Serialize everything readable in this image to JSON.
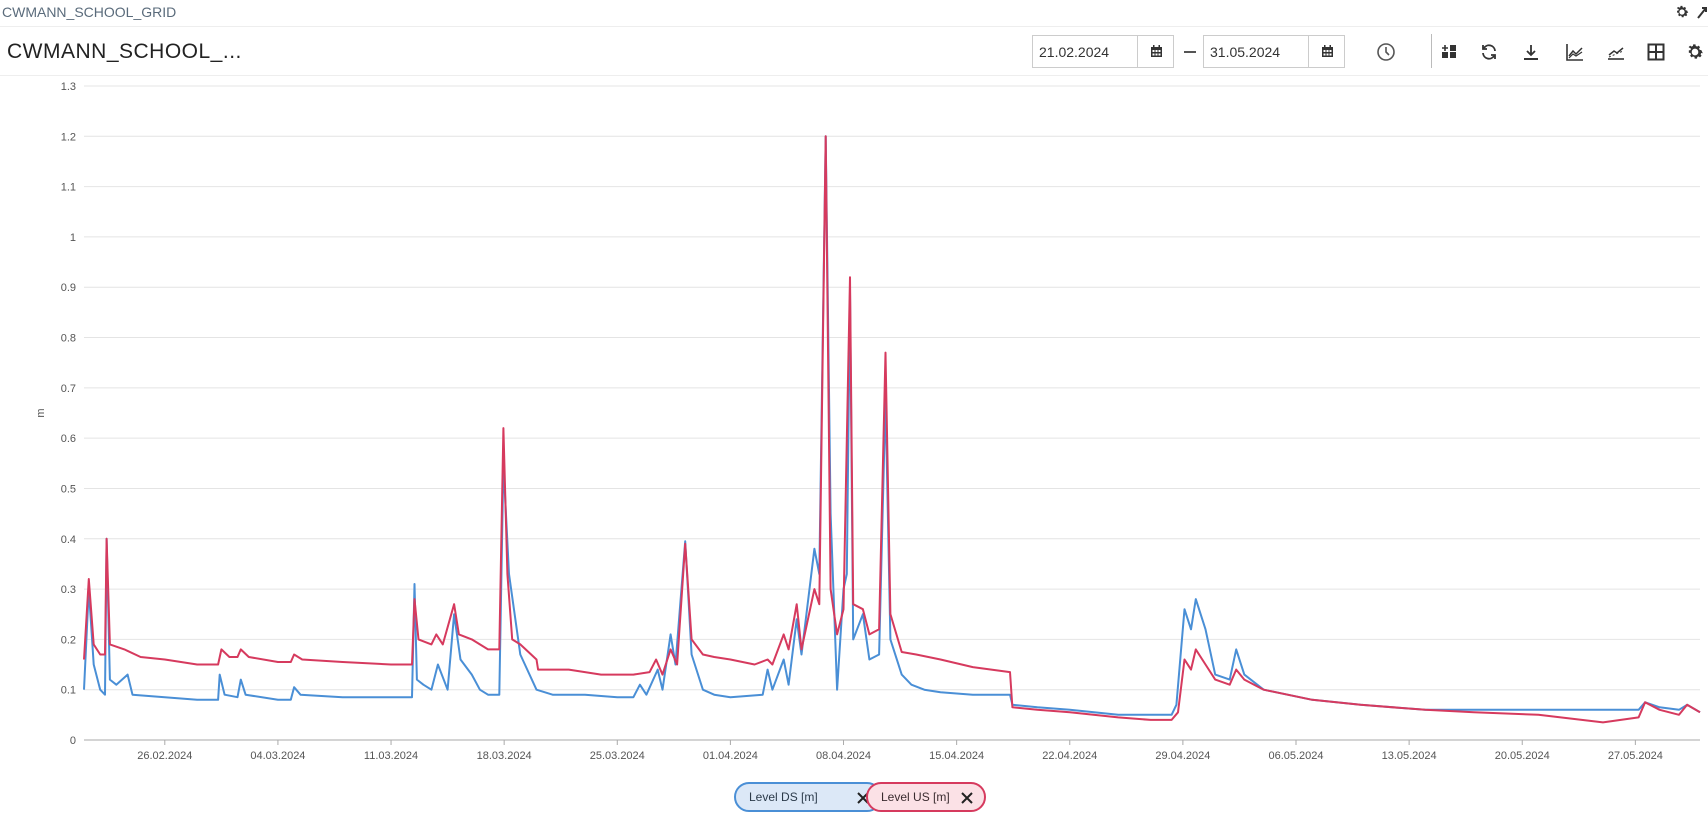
{
  "window": {
    "title": "CWMANN_SCHOOL_GRID"
  },
  "header": {
    "title": "CWMANN_SCHOOL_...",
    "date_from": "21.02.2024",
    "date_to": "31.05.2024",
    "toolbar": [
      "history-icon",
      "add-widget-icon",
      "refresh-icon",
      "download-icon",
      "line-chart-icon",
      "trend-icon",
      "table-icon",
      "settings-icon"
    ]
  },
  "legend": {
    "items": [
      {
        "label": "Level DS [m]",
        "color": "#4a8fd6"
      },
      {
        "label": "Level US [m]",
        "color": "#d63a5e"
      }
    ]
  },
  "chart_data": {
    "type": "line",
    "title": "",
    "xlabel": "",
    "ylabel": "m",
    "x_start": "21.02.2024",
    "x_end": "31.05.2024",
    "ylim": [
      0,
      1.3
    ],
    "yticks": [
      "0",
      "0.1",
      "0.2",
      "0.3",
      "0.4",
      "0.5",
      "0.6",
      "0.7",
      "0.8",
      "0.9",
      "1",
      "1.1",
      "1.2",
      "1.3"
    ],
    "xticks": [
      {
        "day": 5,
        "label": "26.02.2024"
      },
      {
        "day": 12,
        "label": "04.03.2024"
      },
      {
        "day": 19,
        "label": "11.03.2024"
      },
      {
        "day": 26,
        "label": "18.03.2024"
      },
      {
        "day": 33,
        "label": "25.03.2024"
      },
      {
        "day": 40,
        "label": "01.04.2024"
      },
      {
        "day": 47,
        "label": "08.04.2024"
      },
      {
        "day": 54,
        "label": "15.04.2024"
      },
      {
        "day": 61,
        "label": "22.04.2024"
      },
      {
        "day": 68,
        "label": "29.04.2024"
      },
      {
        "day": 75,
        "label": "06.05.2024"
      },
      {
        "day": 82,
        "label": "13.05.2024"
      },
      {
        "day": 89,
        "label": "20.05.2024"
      },
      {
        "day": 96,
        "label": "27.05.2024"
      }
    ],
    "x_max_day": 100,
    "series": [
      {
        "name": "Level DS [m]",
        "color": "#4a8fd6",
        "points": [
          [
            0,
            0.1
          ],
          [
            0.3,
            0.3
          ],
          [
            0.6,
            0.15
          ],
          [
            1,
            0.1
          ],
          [
            1.3,
            0.09
          ],
          [
            1.4,
            0.4
          ],
          [
            1.6,
            0.12
          ],
          [
            2,
            0.11
          ],
          [
            2.7,
            0.13
          ],
          [
            3,
            0.09
          ],
          [
            5,
            0.085
          ],
          [
            7,
            0.08
          ],
          [
            8.3,
            0.08
          ],
          [
            8.4,
            0.13
          ],
          [
            8.7,
            0.09
          ],
          [
            9.5,
            0.085
          ],
          [
            9.7,
            0.12
          ],
          [
            10,
            0.09
          ],
          [
            12,
            0.08
          ],
          [
            12.8,
            0.08
          ],
          [
            13,
            0.105
          ],
          [
            13.4,
            0.09
          ],
          [
            16,
            0.085
          ],
          [
            19,
            0.085
          ],
          [
            20.3,
            0.085
          ],
          [
            20.45,
            0.31
          ],
          [
            20.6,
            0.12
          ],
          [
            21,
            0.11
          ],
          [
            21.5,
            0.1
          ],
          [
            21.9,
            0.15
          ],
          [
            22.5,
            0.1
          ],
          [
            22.9,
            0.25
          ],
          [
            23.3,
            0.16
          ],
          [
            24,
            0.13
          ],
          [
            24.5,
            0.1
          ],
          [
            25,
            0.09
          ],
          [
            25.7,
            0.09
          ],
          [
            25.95,
            0.55
          ],
          [
            26.3,
            0.33
          ],
          [
            27,
            0.17
          ],
          [
            28,
            0.1
          ],
          [
            29,
            0.09
          ],
          [
            31,
            0.09
          ],
          [
            33,
            0.085
          ],
          [
            34,
            0.085
          ],
          [
            34.4,
            0.11
          ],
          [
            34.8,
            0.09
          ],
          [
            35.5,
            0.14
          ],
          [
            35.8,
            0.1
          ],
          [
            36.3,
            0.21
          ],
          [
            36.6,
            0.15
          ],
          [
            37.2,
            0.395
          ],
          [
            37.6,
            0.17
          ],
          [
            38.3,
            0.1
          ],
          [
            39,
            0.09
          ],
          [
            40,
            0.085
          ],
          [
            42,
            0.09
          ],
          [
            42.3,
            0.14
          ],
          [
            42.6,
            0.1
          ],
          [
            43.3,
            0.16
          ],
          [
            43.6,
            0.11
          ],
          [
            44.1,
            0.24
          ],
          [
            44.4,
            0.17
          ],
          [
            45.2,
            0.38
          ],
          [
            45.5,
            0.33
          ],
          [
            45.9,
            1.2
          ],
          [
            46.2,
            0.45
          ],
          [
            46.6,
            0.1
          ],
          [
            47,
            0.3
          ],
          [
            47.2,
            0.33
          ],
          [
            47.4,
            0.89
          ],
          [
            47.6,
            0.2
          ],
          [
            48.2,
            0.25
          ],
          [
            48.6,
            0.16
          ],
          [
            49.2,
            0.17
          ],
          [
            49.6,
            0.68
          ],
          [
            49.9,
            0.2
          ],
          [
            50.6,
            0.13
          ],
          [
            51.2,
            0.11
          ],
          [
            52,
            0.1
          ],
          [
            53,
            0.095
          ],
          [
            55,
            0.09
          ],
          [
            57.3,
            0.09
          ],
          [
            57.45,
            0.07
          ],
          [
            59,
            0.065
          ],
          [
            61,
            0.06
          ],
          [
            64,
            0.05
          ],
          [
            66,
            0.05
          ],
          [
            67.3,
            0.05
          ],
          [
            67.6,
            0.07
          ],
          [
            68.1,
            0.26
          ],
          [
            68.5,
            0.22
          ],
          [
            68.8,
            0.28
          ],
          [
            69.4,
            0.22
          ],
          [
            70,
            0.13
          ],
          [
            70.9,
            0.12
          ],
          [
            71.3,
            0.18
          ],
          [
            71.8,
            0.13
          ],
          [
            73,
            0.1
          ],
          [
            76,
            0.08
          ],
          [
            79,
            0.07
          ],
          [
            83,
            0.06
          ],
          [
            86,
            0.06
          ],
          [
            90,
            0.06
          ],
          [
            94,
            0.06
          ],
          [
            96.2,
            0.06
          ],
          [
            96.6,
            0.075
          ],
          [
            97.5,
            0.065
          ],
          [
            98.7,
            0.06
          ],
          [
            99.2,
            0.07
          ],
          [
            100,
            0.055
          ]
        ]
      },
      {
        "name": "Level US [m]",
        "color": "#d63a5e",
        "points": [
          [
            0,
            0.16
          ],
          [
            0.3,
            0.32
          ],
          [
            0.6,
            0.19
          ],
          [
            1,
            0.17
          ],
          [
            1.3,
            0.17
          ],
          [
            1.4,
            0.4
          ],
          [
            1.6,
            0.19
          ],
          [
            2.5,
            0.18
          ],
          [
            3.5,
            0.165
          ],
          [
            5,
            0.16
          ],
          [
            6,
            0.155
          ],
          [
            7,
            0.15
          ],
          [
            8.3,
            0.15
          ],
          [
            8.5,
            0.18
          ],
          [
            9,
            0.165
          ],
          [
            9.5,
            0.165
          ],
          [
            9.7,
            0.18
          ],
          [
            10.2,
            0.165
          ],
          [
            12,
            0.155
          ],
          [
            12.8,
            0.155
          ],
          [
            13,
            0.17
          ],
          [
            13.5,
            0.16
          ],
          [
            16,
            0.155
          ],
          [
            19,
            0.15
          ],
          [
            20.3,
            0.15
          ],
          [
            20.45,
            0.28
          ],
          [
            20.7,
            0.2
          ],
          [
            21.5,
            0.19
          ],
          [
            21.8,
            0.21
          ],
          [
            22.2,
            0.19
          ],
          [
            22.9,
            0.27
          ],
          [
            23.2,
            0.21
          ],
          [
            24,
            0.2
          ],
          [
            24.5,
            0.19
          ],
          [
            25,
            0.18
          ],
          [
            25.7,
            0.18
          ],
          [
            25.95,
            0.62
          ],
          [
            26.2,
            0.33
          ],
          [
            26.5,
            0.2
          ],
          [
            27,
            0.19
          ],
          [
            28,
            0.16
          ],
          [
            28.1,
            0.14
          ],
          [
            30,
            0.14
          ],
          [
            32,
            0.13
          ],
          [
            34,
            0.13
          ],
          [
            35,
            0.135
          ],
          [
            35.4,
            0.16
          ],
          [
            35.8,
            0.13
          ],
          [
            36.3,
            0.18
          ],
          [
            36.7,
            0.15
          ],
          [
            37.2,
            0.39
          ],
          [
            37.6,
            0.2
          ],
          [
            38.3,
            0.17
          ],
          [
            39,
            0.165
          ],
          [
            40,
            0.16
          ],
          [
            41.5,
            0.15
          ],
          [
            42.3,
            0.16
          ],
          [
            42.6,
            0.15
          ],
          [
            43.3,
            0.21
          ],
          [
            43.6,
            0.18
          ],
          [
            44.1,
            0.27
          ],
          [
            44.4,
            0.18
          ],
          [
            45.2,
            0.3
          ],
          [
            45.5,
            0.27
          ],
          [
            45.9,
            1.2
          ],
          [
            46.2,
            0.3
          ],
          [
            46.6,
            0.21
          ],
          [
            47,
            0.26
          ],
          [
            47.4,
            0.92
          ],
          [
            47.6,
            0.27
          ],
          [
            48.2,
            0.26
          ],
          [
            48.6,
            0.21
          ],
          [
            49.2,
            0.22
          ],
          [
            49.6,
            0.77
          ],
          [
            49.9,
            0.25
          ],
          [
            50.6,
            0.175
          ],
          [
            51.5,
            0.17
          ],
          [
            53,
            0.16
          ],
          [
            55,
            0.145
          ],
          [
            57.3,
            0.135
          ],
          [
            57.45,
            0.065
          ],
          [
            59,
            0.06
          ],
          [
            61,
            0.055
          ],
          [
            64,
            0.045
          ],
          [
            66,
            0.04
          ],
          [
            67.3,
            0.04
          ],
          [
            67.7,
            0.055
          ],
          [
            68.1,
            0.16
          ],
          [
            68.5,
            0.14
          ],
          [
            68.8,
            0.18
          ],
          [
            69.4,
            0.15
          ],
          [
            70,
            0.12
          ],
          [
            70.9,
            0.11
          ],
          [
            71.3,
            0.14
          ],
          [
            71.8,
            0.12
          ],
          [
            73,
            0.1
          ],
          [
            76,
            0.08
          ],
          [
            79,
            0.07
          ],
          [
            83,
            0.06
          ],
          [
            86,
            0.055
          ],
          [
            90,
            0.05
          ],
          [
            94,
            0.035
          ],
          [
            96.2,
            0.045
          ],
          [
            96.6,
            0.075
          ],
          [
            97.5,
            0.06
          ],
          [
            98.7,
            0.05
          ],
          [
            99.2,
            0.07
          ],
          [
            100,
            0.055
          ]
        ]
      }
    ]
  }
}
